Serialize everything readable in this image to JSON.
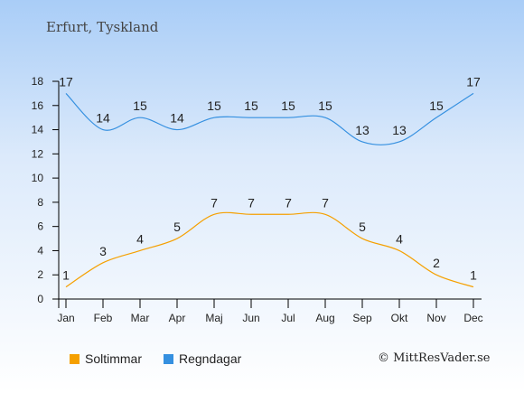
{
  "place_title": "Erfurt, Tyskland",
  "copyright": "© MittResVader.se",
  "colors": {
    "sun": "#f5a000",
    "rain": "#3590e0",
    "axis": "#000000"
  },
  "legend": [
    {
      "label": "Soltimmar",
      "color": "#f5a000"
    },
    {
      "label": "Regndagar",
      "color": "#3590e0"
    }
  ],
  "chart_data": {
    "type": "line",
    "categories": [
      "Jan",
      "Feb",
      "Mar",
      "Apr",
      "Maj",
      "Jun",
      "Jul",
      "Aug",
      "Sep",
      "Okt",
      "Nov",
      "Dec"
    ],
    "ylim": [
      0,
      18
    ],
    "yticks": [
      0,
      2,
      4,
      6,
      8,
      10,
      12,
      14,
      16,
      18
    ],
    "grid": false,
    "legend_placement": "bottom-left",
    "series": [
      {
        "name": "Soltimmar",
        "values": [
          1,
          3,
          4,
          5,
          7,
          7,
          7,
          7,
          5,
          4,
          2,
          1
        ]
      },
      {
        "name": "Regndagar",
        "values": [
          17,
          14,
          15,
          14,
          15,
          15,
          15,
          15,
          13,
          13,
          15,
          17
        ]
      }
    ]
  }
}
